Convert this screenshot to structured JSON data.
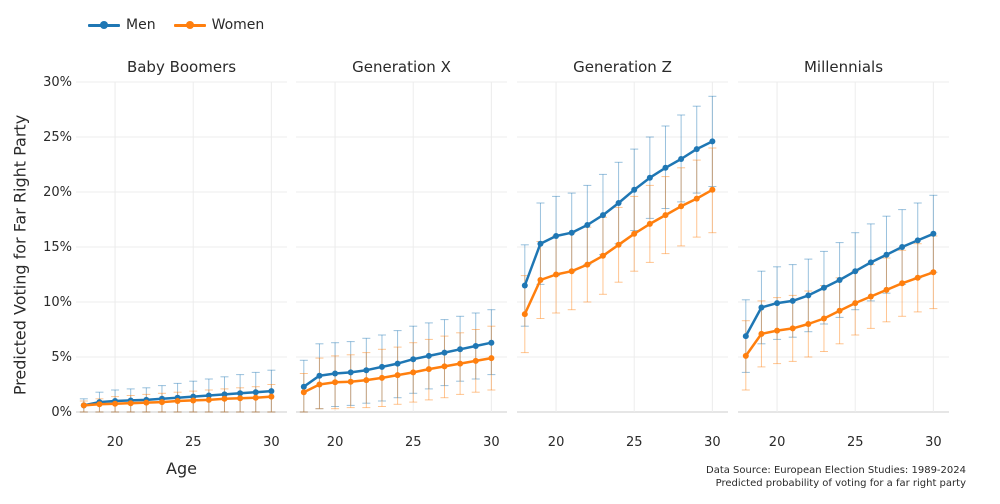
{
  "legend": {
    "items": [
      {
        "label": "Men",
        "color": "#1f77b4"
      },
      {
        "label": "Women",
        "color": "#ff7f0e"
      }
    ]
  },
  "axes": {
    "xlabel": "Age",
    "ylabel": "Predicted Voting for Far Right Party"
  },
  "caption": {
    "line1": "Data Source: European Election Studies: 1989-2024",
    "line2": "Predicted probability of voting for a far right party"
  },
  "chart_data": {
    "type": "line",
    "x": [
      18,
      19,
      20,
      21,
      22,
      23,
      24,
      25,
      26,
      27,
      28,
      29,
      30
    ],
    "xticks": [
      20,
      25,
      30
    ],
    "ylim": [
      0,
      30
    ],
    "yticks": [
      0,
      5,
      10,
      15,
      20,
      25,
      30
    ],
    "ytick_labels": [
      "0%",
      "5%",
      "10%",
      "15%",
      "20%",
      "25%",
      "30%"
    ],
    "grid": true,
    "legend_position": "top-left",
    "panels": [
      {
        "title": "Baby Boomers",
        "series": [
          {
            "name": "Men",
            "values": [
              0.6,
              0.9,
              1.0,
              1.05,
              1.1,
              1.2,
              1.3,
              1.4,
              1.5,
              1.6,
              1.7,
              1.8,
              1.9
            ],
            "upper": [
              1.2,
              1.8,
              2.0,
              2.1,
              2.2,
              2.4,
              2.6,
              2.8,
              3.0,
              3.2,
              3.4,
              3.6,
              3.8
            ],
            "lower": [
              0,
              0,
              0,
              0,
              0,
              0,
              0,
              0,
              0,
              0,
              0,
              0,
              0
            ]
          },
          {
            "name": "Women",
            "values": [
              0.6,
              0.7,
              0.75,
              0.8,
              0.85,
              0.9,
              1.0,
              1.05,
              1.1,
              1.2,
              1.25,
              1.3,
              1.4
            ],
            "upper": [
              1.0,
              1.2,
              1.4,
              1.5,
              1.6,
              1.7,
              1.8,
              1.9,
              2.0,
              2.1,
              2.2,
              2.3,
              2.5
            ],
            "lower": [
              0,
              0,
              0,
              0,
              0,
              0,
              0,
              0,
              0,
              0,
              0,
              0,
              0
            ]
          }
        ]
      },
      {
        "title": "Generation X",
        "series": [
          {
            "name": "Men",
            "values": [
              2.3,
              3.3,
              3.5,
              3.6,
              3.8,
              4.1,
              4.4,
              4.8,
              5.1,
              5.4,
              5.7,
              6.0,
              6.3
            ],
            "upper": [
              4.7,
              6.2,
              6.3,
              6.4,
              6.7,
              7.0,
              7.4,
              7.8,
              8.1,
              8.4,
              8.7,
              9.0,
              9.3
            ],
            "lower": [
              0,
              0.3,
              0.5,
              0.6,
              0.8,
              1.0,
              1.3,
              1.7,
              2.1,
              2.4,
              2.8,
              3.0,
              3.4
            ]
          },
          {
            "name": "Women",
            "values": [
              1.8,
              2.5,
              2.7,
              2.75,
              2.9,
              3.1,
              3.35,
              3.6,
              3.9,
              4.15,
              4.4,
              4.65,
              4.9
            ],
            "upper": [
              3.5,
              4.9,
              5.1,
              5.2,
              5.4,
              5.7,
              5.9,
              6.3,
              6.6,
              6.9,
              7.2,
              7.5,
              7.8
            ],
            "lower": [
              0,
              0.3,
              0.3,
              0.4,
              0.4,
              0.5,
              0.7,
              0.9,
              1.1,
              1.3,
              1.6,
              1.8,
              2.0
            ]
          }
        ]
      },
      {
        "title": "Generation Z",
        "series": [
          {
            "name": "Men",
            "values": [
              11.5,
              15.3,
              16.0,
              16.3,
              17.0,
              17.9,
              19.0,
              20.2,
              21.3,
              22.2,
              23.0,
              23.9,
              24.6
            ],
            "upper": [
              15.2,
              19.0,
              19.6,
              19.9,
              20.6,
              21.6,
              22.7,
              23.9,
              25.0,
              26.0,
              27.0,
              27.8,
              28.7
            ],
            "lower": [
              7.8,
              11.6,
              12.4,
              12.8,
              13.4,
              14.3,
              15.3,
              16.5,
              17.6,
              18.5,
              19.1,
              19.9,
              20.5
            ]
          },
          {
            "name": "Women",
            "values": [
              8.9,
              12.0,
              12.5,
              12.8,
              13.4,
              14.2,
              15.2,
              16.2,
              17.1,
              17.9,
              18.7,
              19.4,
              20.2
            ],
            "upper": [
              12.4,
              15.5,
              16.0,
              16.3,
              16.8,
              17.7,
              18.6,
              19.6,
              20.6,
              21.4,
              22.2,
              22.9,
              24.0
            ],
            "lower": [
              5.4,
              8.5,
              9.0,
              9.3,
              10.0,
              10.7,
              11.8,
              12.8,
              13.6,
              14.4,
              15.1,
              15.9,
              16.3
            ]
          }
        ]
      },
      {
        "title": "Millennials",
        "series": [
          {
            "name": "Men",
            "values": [
              6.9,
              9.5,
              9.9,
              10.1,
              10.6,
              11.3,
              12.0,
              12.8,
              13.6,
              14.3,
              15.0,
              15.6,
              16.2
            ],
            "upper": [
              10.2,
              12.8,
              13.2,
              13.4,
              13.9,
              14.6,
              15.4,
              16.3,
              17.1,
              17.8,
              18.4,
              19.0,
              19.7
            ],
            "lower": [
              3.6,
              6.2,
              6.6,
              6.8,
              7.3,
              8.0,
              8.6,
              9.3,
              10.1,
              10.8,
              11.6,
              12.2,
              12.7
            ]
          },
          {
            "name": "Women",
            "values": [
              5.1,
              7.1,
              7.4,
              7.6,
              8.0,
              8.5,
              9.2,
              9.9,
              10.5,
              11.1,
              11.7,
              12.2,
              12.7
            ],
            "upper": [
              8.3,
              10.1,
              10.4,
              10.6,
              11.0,
              11.5,
              12.2,
              12.8,
              13.4,
              14.0,
              14.7,
              15.3,
              16.0
            ],
            "lower": [
              2.0,
              4.1,
              4.4,
              4.6,
              5.0,
              5.5,
              6.2,
              7.0,
              7.6,
              8.2,
              8.7,
              9.1,
              9.4
            ]
          }
        ]
      }
    ]
  }
}
